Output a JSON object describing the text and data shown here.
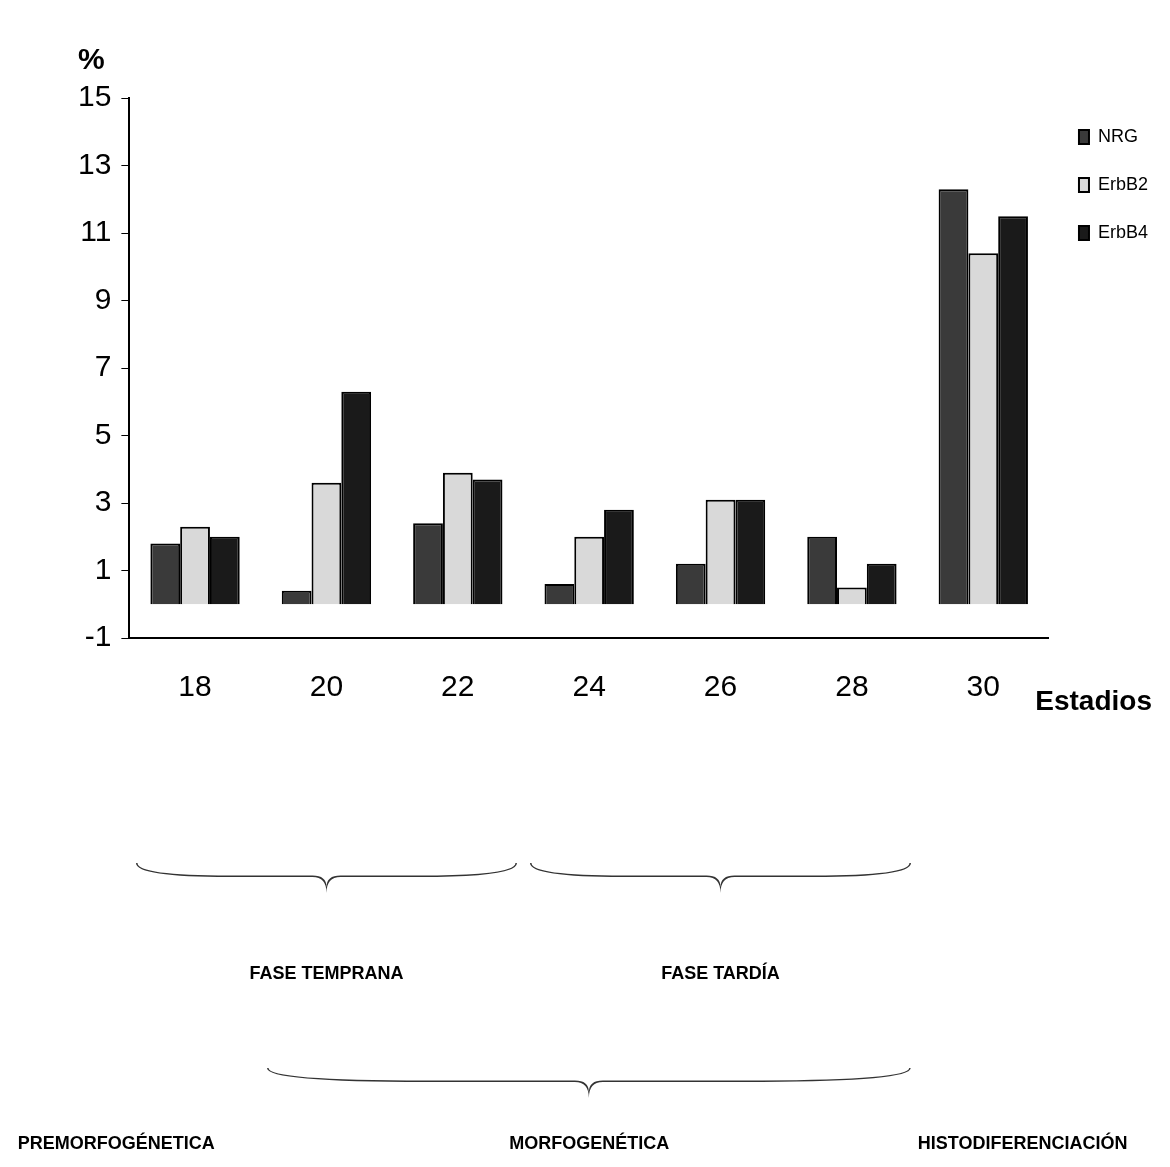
{
  "chart_data": {
    "type": "bar",
    "xlabel": "Estadios",
    "ylabel": "%",
    "categories": [
      "18",
      "20",
      "22",
      "24",
      "26",
      "28",
      "30"
    ],
    "series": [
      {
        "name": "NRG",
        "color": "#3a3a3a",
        "values": [
          1.8,
          0.4,
          2.4,
          0.6,
          1.2,
          2.0,
          12.3
        ]
      },
      {
        "name": "ErbB2",
        "color": "#d9d9d9",
        "values": [
          2.3,
          3.6,
          3.9,
          2.0,
          3.1,
          0.5,
          10.4
        ]
      },
      {
        "name": "ErbB4",
        "color": "#1a1a1a",
        "values": [
          2.0,
          6.3,
          3.7,
          2.8,
          3.1,
          1.2,
          11.5
        ]
      }
    ],
    "ylim": [
      -1,
      15
    ],
    "yticks": [
      -1,
      1,
      3,
      5,
      7,
      9,
      11,
      13,
      15
    ],
    "grid": false,
    "legend": "top right",
    "annotations": [
      "FASE TEMPRANA",
      "FASE TARDÍA",
      "PREMORFOGÉNETICA",
      "MORFOGENÉTICA",
      "HISTODIFERENCIACIÓN"
    ]
  }
}
